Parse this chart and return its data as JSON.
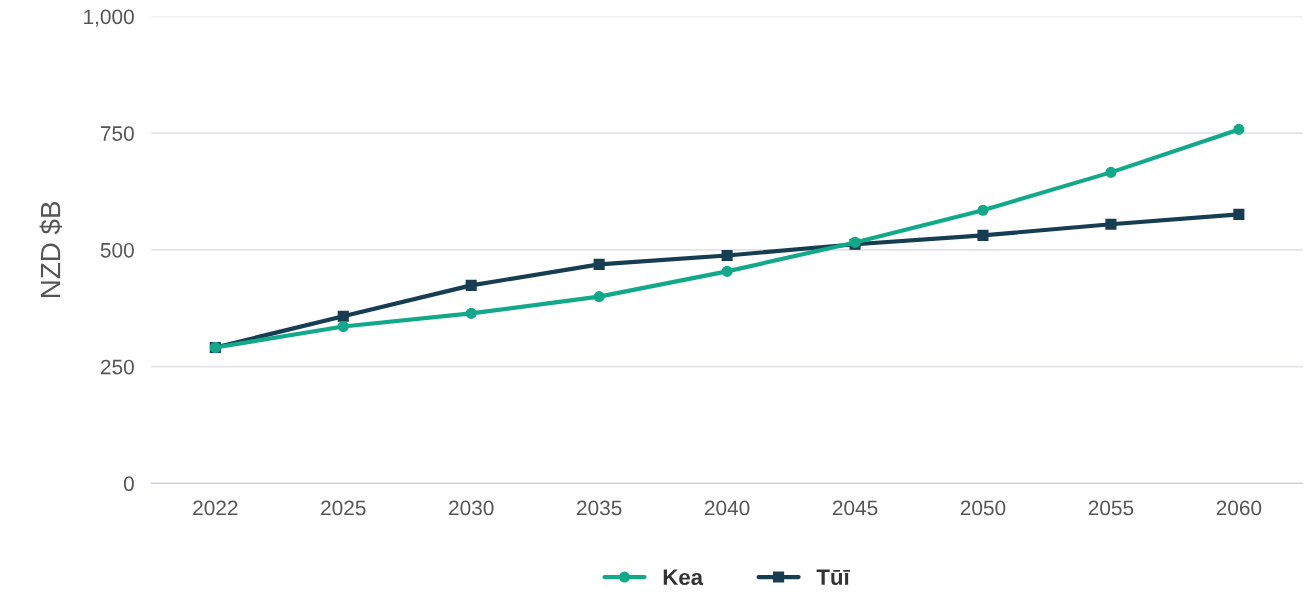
{
  "chart_data": {
    "type": "line",
    "ylabel": "NZD $B",
    "categories": [
      "2022",
      "2025",
      "2030",
      "2035",
      "2040",
      "2045",
      "2050",
      "2055",
      "2060"
    ],
    "series": [
      {
        "name": "Kea",
        "color": "#12a98b",
        "marker": "circle",
        "values": [
          291,
          336,
          364,
          400,
          454,
          516,
          585,
          666,
          758
        ]
      },
      {
        "name": "Tūī",
        "color": "#173d52",
        "marker": "square",
        "values": [
          291,
          358,
          424,
          469,
          488,
          512,
          531,
          555,
          576
        ]
      }
    ],
    "ylim": [
      0,
      1000
    ],
    "yticks": [
      0,
      250,
      500,
      750,
      {
        "value": 1000,
        "label": "1,000"
      }
    ],
    "grid": "y",
    "legend": "bottom"
  }
}
